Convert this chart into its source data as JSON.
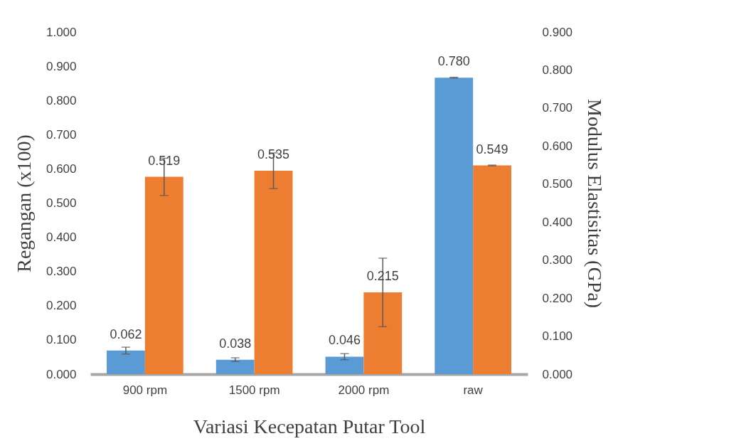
{
  "chart_data": {
    "type": "bar",
    "xlabel": "Variasi Kecepatan Putar Tool",
    "ylabel": "Regangan (x100)",
    "y2label": "Modulus Elastisitas (GPa)",
    "categories": [
      "900 rpm",
      "1500 rpm",
      "2000 rpm",
      "raw"
    ],
    "series": [
      {
        "color": "#5b9bd5",
        "axis": "y2",
        "values": [
          0.062,
          0.038,
          0.046,
          0.78
        ],
        "value_labels": [
          "0.062",
          "0.038",
          "0.046",
          "0.780"
        ],
        "errors": [
          0.009,
          0.005,
          0.008,
          0.001
        ]
      },
      {
        "color": "#ed7d31",
        "axis": "y2",
        "values": [
          0.519,
          0.535,
          0.215,
          0.549
        ],
        "value_labels": [
          "0.519",
          "0.535",
          "0.215",
          "0.549"
        ],
        "errors": [
          0.049,
          0.047,
          0.09,
          0.001
        ]
      }
    ],
    "grid": false,
    "legend": false,
    "ylim": [
      0,
      1
    ],
    "yticks": [
      {
        "value": 0,
        "label": "0.000"
      },
      {
        "value": 0.1,
        "label": "0.100"
      },
      {
        "value": 0.2,
        "label": "0.200"
      },
      {
        "value": 0.3,
        "label": "0.300"
      },
      {
        "value": 0.4,
        "label": "0.400"
      },
      {
        "value": 0.5,
        "label": "0.500"
      },
      {
        "value": 0.6,
        "label": "0.600"
      },
      {
        "value": 0.7,
        "label": "0.700"
      },
      {
        "value": 0.8,
        "label": "0.800"
      },
      {
        "value": 0.9,
        "label": "0.900"
      },
      {
        "value": 1,
        "label": "1.000"
      }
    ],
    "y2lim": [
      0,
      0.9
    ],
    "y2ticks": [
      {
        "value": 0,
        "label": "0.000"
      },
      {
        "value": 0.1,
        "label": "0.100"
      },
      {
        "value": 0.2,
        "label": "0.200"
      },
      {
        "value": 0.3,
        "label": "0.300"
      },
      {
        "value": 0.4,
        "label": "0.400"
      },
      {
        "value": 0.5,
        "label": "0.500"
      },
      {
        "value": 0.6,
        "label": "0.600"
      },
      {
        "value": 0.7,
        "label": "0.700"
      },
      {
        "value": 0.8,
        "label": "0.800"
      },
      {
        "value": 0.9,
        "label": "0.900"
      }
    ]
  }
}
